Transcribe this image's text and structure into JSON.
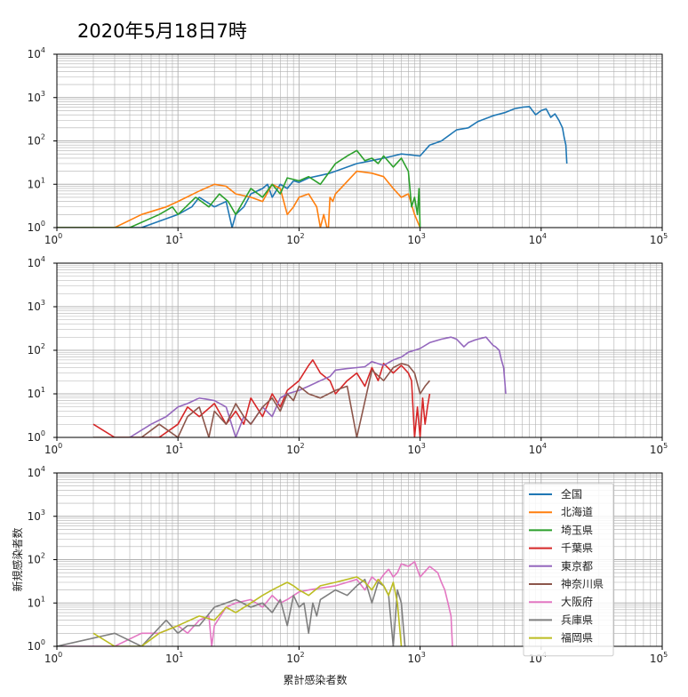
{
  "page": {
    "title": "2020年5月18日7時"
  },
  "colors": {
    "全国": "#1f77b4",
    "北海道": "#ff7f0e",
    "埼玉県": "#2ca02c",
    "千葉県": "#d62728",
    "東京都": "#9467bd",
    "神奈川県": "#8c564b",
    "大阪府": "#e377c2",
    "兵庫県": "#7f7f7f",
    "福岡県": "#bcbd22"
  },
  "chart_data": [
    {
      "type": "line",
      "xscale": "log",
      "yscale": "log",
      "xlim": [
        1,
        100000
      ],
      "ylim": [
        1,
        10000
      ],
      "xticks": [
        "10^0",
        "10^1",
        "10^2",
        "10^3",
        "10^4",
        "10^5"
      ],
      "yticks": [
        "10^0",
        "10^1",
        "10^2",
        "10^3",
        "10^4"
      ],
      "grid": true,
      "series": [
        {
          "name": "全国",
          "x": [
            1,
            5,
            10,
            13,
            15,
            20,
            25,
            28,
            30,
            35,
            40,
            50,
            55,
            60,
            70,
            80,
            90,
            100,
            120,
            150,
            180,
            200,
            250,
            300,
            400,
            500,
            600,
            700,
            800,
            1000,
            1200,
            1500,
            2000,
            2500,
            3000,
            4000,
            5000,
            6000,
            7000,
            8000,
            9000,
            10000,
            11000,
            12000,
            13000,
            14000,
            15000,
            15500,
            16000,
            16300
          ],
          "y": [
            1,
            1,
            2,
            3,
            5,
            3,
            4,
            1,
            2,
            3,
            6,
            8,
            10,
            5,
            10,
            8,
            12,
            11,
            14,
            16,
            18,
            20,
            25,
            30,
            35,
            40,
            45,
            50,
            48,
            45,
            80,
            100,
            180,
            200,
            280,
            380,
            450,
            550,
            600,
            620,
            400,
            500,
            550,
            350,
            420,
            300,
            200,
            120,
            80,
            30
          ]
        },
        {
          "name": "北海道",
          "x": [
            1,
            3,
            5,
            8,
            10,
            15,
            20,
            25,
            30,
            40,
            50,
            60,
            70,
            80,
            90,
            100,
            120,
            140,
            150,
            160,
            170,
            175,
            180,
            190,
            200,
            300,
            400,
            500,
            600,
            700,
            800,
            900,
            1000
          ],
          "y": [
            1,
            1,
            2,
            3,
            4,
            7,
            10,
            9,
            6,
            5,
            4,
            10,
            8,
            2,
            3,
            5,
            6,
            3,
            1,
            2,
            1,
            1,
            5,
            4,
            6,
            20,
            18,
            15,
            8,
            5,
            6,
            2,
            1
          ]
        },
        {
          "name": "埼玉県",
          "x": [
            1,
            4,
            7,
            9,
            10,
            14,
            18,
            22,
            26,
            30,
            40,
            50,
            60,
            70,
            80,
            100,
            120,
            150,
            200,
            250,
            300,
            350,
            400,
            450,
            500,
            600,
            700,
            800,
            850,
            900,
            950,
            980,
            1000
          ],
          "y": [
            1,
            1,
            2,
            3,
            2,
            5,
            3,
            6,
            4,
            2,
            8,
            5,
            10,
            6,
            14,
            12,
            15,
            10,
            30,
            45,
            60,
            35,
            40,
            30,
            45,
            25,
            40,
            20,
            3,
            5,
            2,
            8,
            1
          ]
        },
        {
          "name": "千葉県",
          "x": [
            2,
            3,
            5,
            7,
            10,
            12,
            15,
            20,
            25,
            30,
            35,
            40,
            50,
            60,
            70,
            80,
            100,
            120,
            130,
            150,
            180,
            200,
            250,
            300,
            350,
            400,
            450,
            500,
            600,
            700,
            800,
            850,
            900,
            950,
            1000,
            1050,
            1100,
            1150,
            1200
          ],
          "y": [
            2,
            1,
            1,
            1,
            2,
            5,
            3,
            6,
            2,
            4,
            2,
            8,
            3,
            10,
            5,
            12,
            20,
            45,
            60,
            30,
            20,
            10,
            20,
            30,
            15,
            40,
            20,
            50,
            30,
            45,
            30,
            20,
            1,
            5,
            1,
            8,
            2,
            5,
            10
          ]
        },
        {
          "name": "東京都",
          "x": [
            4,
            6,
            8,
            10,
            12,
            15,
            20,
            25,
            30,
            35,
            40,
            50,
            60,
            70,
            80,
            100,
            120,
            150,
            180,
            200,
            250,
            300,
            350,
            400,
            500,
            600,
            700,
            800,
            900,
            1000,
            1200,
            1500,
            1800,
            2000,
            2300,
            2500,
            2800,
            3000,
            3500,
            4000,
            4200,
            4500,
            4700,
            4900,
            5000,
            5100
          ],
          "y": [
            1,
            2,
            3,
            5,
            6,
            8,
            7,
            5,
            1,
            3,
            2,
            5,
            3,
            8,
            10,
            12,
            15,
            20,
            25,
            35,
            38,
            40,
            42,
            55,
            45,
            60,
            70,
            90,
            100,
            110,
            150,
            180,
            200,
            180,
            120,
            150,
            170,
            180,
            200,
            130,
            120,
            100,
            60,
            40,
            20,
            10
          ]
        },
        {
          "name": "神奈川県",
          "x": [
            2,
            3,
            5,
            7,
            10,
            12,
            15,
            18,
            20,
            25,
            30,
            35,
            40,
            50,
            60,
            70,
            80,
            90,
            100,
            120,
            150,
            200,
            250,
            300,
            400,
            500,
            600,
            700,
            800,
            900,
            1000,
            1100,
            1200
          ],
          "y": [
            1,
            1,
            1,
            2,
            1,
            3,
            5,
            1,
            4,
            2,
            6,
            3,
            2,
            5,
            8,
            4,
            10,
            7,
            15,
            10,
            8,
            12,
            15,
            1,
            35,
            20,
            40,
            50,
            45,
            30,
            10,
            15,
            20
          ]
        },
        {
          "name": "大阪府",
          "x": [
            1,
            3,
            5,
            7,
            10,
            12,
            15,
            18,
            19,
            20,
            25,
            30,
            40,
            50,
            60,
            70,
            80,
            100,
            120,
            150,
            200,
            250,
            300,
            350,
            400,
            450,
            500,
            550,
            600,
            650,
            700,
            800,
            900,
            1000,
            1200,
            1400,
            1500,
            1600,
            1700,
            1800,
            1850
          ],
          "y": [
            1,
            1,
            2,
            2,
            3,
            2,
            4,
            5,
            1,
            3,
            8,
            10,
            12,
            8,
            15,
            10,
            12,
            18,
            20,
            22,
            25,
            30,
            35,
            20,
            40,
            30,
            45,
            60,
            40,
            50,
            80,
            70,
            90,
            40,
            70,
            50,
            30,
            20,
            10,
            5,
            1
          ]
        },
        {
          "name": "兵庫県",
          "x": [
            1,
            3,
            5,
            8,
            10,
            12,
            15,
            20,
            25,
            30,
            40,
            50,
            60,
            70,
            80,
            90,
            100,
            110,
            120,
            130,
            140,
            150,
            200,
            250,
            300,
            350,
            400,
            450,
            500,
            550,
            600,
            650,
            700,
            750
          ],
          "y": [
            1,
            2,
            1,
            4,
            2,
            3,
            3,
            8,
            10,
            12,
            8,
            10,
            6,
            12,
            3,
            15,
            8,
            10,
            2,
            10,
            5,
            12,
            20,
            15,
            25,
            35,
            10,
            30,
            25,
            15,
            1,
            20,
            10,
            1
          ]
        },
        {
          "name": "福岡県",
          "x": [
            2,
            3,
            5,
            7,
            10,
            15,
            20,
            25,
            30,
            40,
            50,
            60,
            70,
            80,
            90,
            100,
            120,
            150,
            200,
            250,
            300,
            350,
            400,
            450,
            500,
            550,
            600,
            650,
            700
          ],
          "y": [
            2,
            1,
            1,
            2,
            3,
            5,
            4,
            8,
            6,
            10,
            15,
            20,
            25,
            30,
            25,
            20,
            15,
            25,
            30,
            35,
            40,
            30,
            20,
            35,
            25,
            15,
            30,
            10,
            1
          ]
        }
      ],
      "legend": null
    },
    {
      "type": "line",
      "xscale": "log",
      "yscale": "log",
      "xlim": [
        1,
        100000
      ],
      "ylim": [
        1,
        10000
      ],
      "xticks": [
        "10^0",
        "10^1",
        "10^2",
        "10^3",
        "10^4",
        "10^5"
      ],
      "yticks": [
        "10^0",
        "10^1",
        "10^2",
        "10^3",
        "10^4"
      ],
      "grid": true,
      "legend": null
    },
    {
      "type": "line",
      "xscale": "log",
      "yscale": "log",
      "xlim": [
        1,
        100000
      ],
      "ylim": [
        1,
        10000
      ],
      "xticks": [
        "10^0",
        "10^1",
        "10^2",
        "10^3",
        "10^4",
        "10^5"
      ],
      "yticks": [
        "10^0",
        "10^1",
        "10^2",
        "10^3",
        "10^4"
      ],
      "grid": true,
      "xlabel": "累計感染者数",
      "ylabel": "新規感染者数",
      "legend": {
        "placement": "top-right",
        "entries": [
          "全国",
          "北海道",
          "埼玉県",
          "千葉県",
          "東京都",
          "神奈川県",
          "大阪府",
          "兵庫県",
          "福岡県"
        ]
      }
    }
  ],
  "panel_series": [
    [
      "全国",
      "北海道",
      "埼玉県"
    ],
    [
      "千葉県",
      "東京都",
      "神奈川県"
    ],
    [
      "大阪府",
      "兵庫県",
      "福岡県"
    ]
  ]
}
